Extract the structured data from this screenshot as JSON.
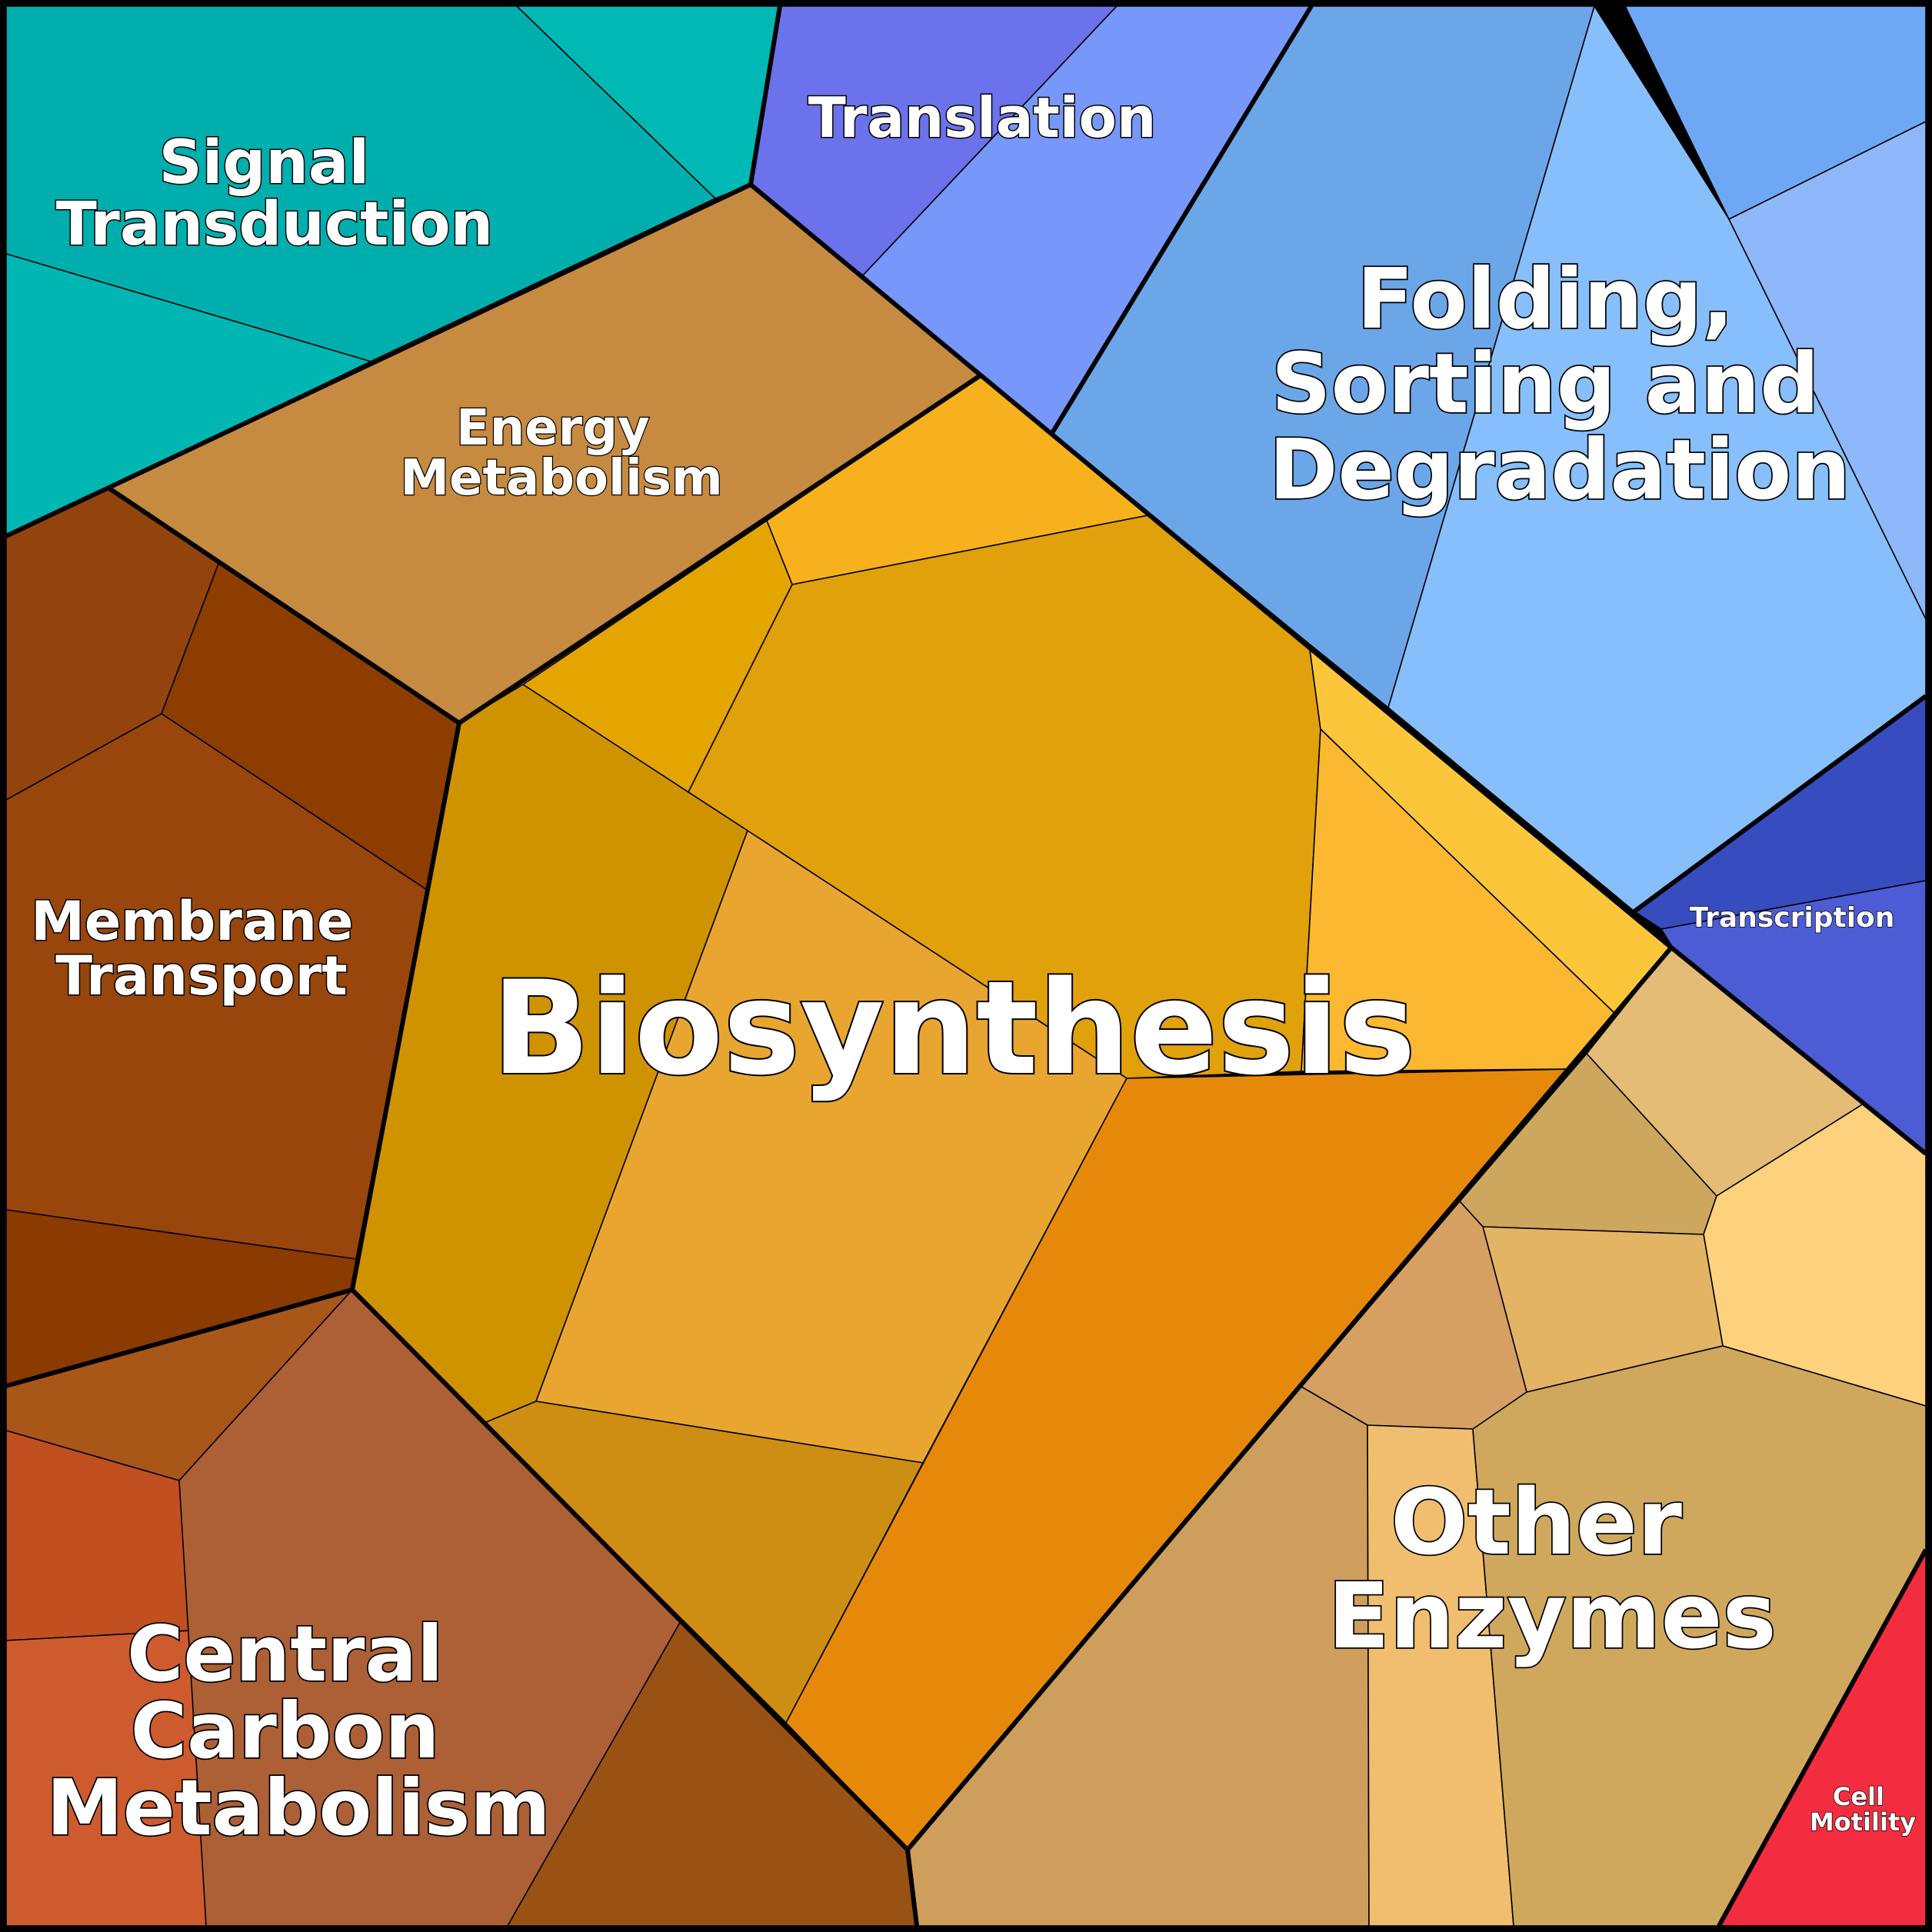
{
  "treemap": {
    "categories": [
      {
        "id": "signal-transduction",
        "label_lines": [
          "Signal",
          "Transduction"
        ],
        "color": "#00AEAE"
      },
      {
        "id": "translation",
        "label_lines": [
          "Translation"
        ],
        "color": "#6C73EC"
      },
      {
        "id": "folding-sorting-degradation",
        "label_lines": [
          "Folding,",
          "Sorting and",
          "Degradation"
        ],
        "color": "#80BCF8"
      },
      {
        "id": "energy-metabolism",
        "label_lines": [
          "Energy",
          "Metabolism"
        ],
        "color": "#C78A41"
      },
      {
        "id": "membrane-transport",
        "label_lines": [
          "Membrane",
          "Transport"
        ],
        "color": "#96450C"
      },
      {
        "id": "biosynthesis",
        "label_lines": [
          "Biosynthesis"
        ],
        "color": "#E0A10A"
      },
      {
        "id": "transcription",
        "label_lines": [
          "Transcription"
        ],
        "color": "#3A4CBF"
      },
      {
        "id": "other-enzymes",
        "label_lines": [
          "Other",
          "Enzymes"
        ],
        "color": "#CEA05C"
      },
      {
        "id": "central-carbon-metabolism",
        "label_lines": [
          "Central",
          "Carbon",
          "Metabolism"
        ],
        "color": "#AD6035"
      },
      {
        "id": "cell-motility",
        "label_lines": [
          "Cell",
          "Motility"
        ],
        "color": "#F42C3F"
      }
    ]
  }
}
